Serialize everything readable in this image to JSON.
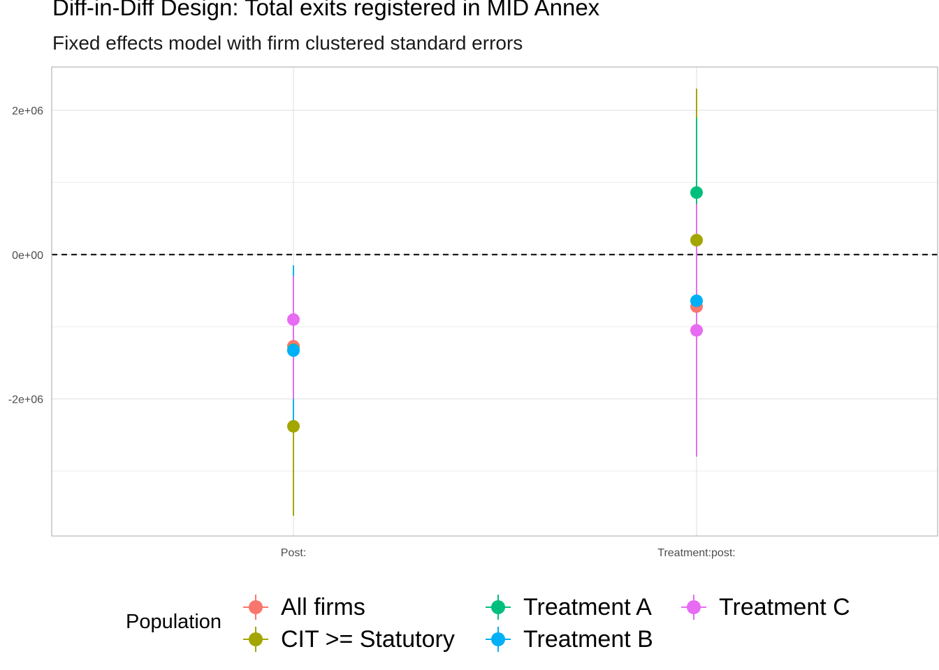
{
  "chart_data": {
    "type": "scatter",
    "subtype": "coefficient-plot-with-error-bars",
    "title": "Diff-in-Diff Design: Total exits registered in MID Annex",
    "subtitle": "Fixed effects model with firm clustered standard errors",
    "xlabel": "",
    "ylabel": "",
    "categories": [
      "Post:",
      "Treatment:post:"
    ],
    "ylim": [
      -3900000,
      2600000
    ],
    "y_ticks": [
      2000000,
      0,
      -2000000
    ],
    "y_tick_labels": [
      "2e+06",
      "0e+00",
      "-2e+06"
    ],
    "y_minor_gridlines": [
      1000000,
      -1000000,
      -3000000
    ],
    "reference_line": {
      "y": 0,
      "style": "dashed"
    },
    "legend_title": "Population",
    "legend_position": "bottom",
    "series": [
      {
        "name": "All firms",
        "color": "#F8766D",
        "estimates": [
          -1270000,
          -720000
        ],
        "lower": [
          -2400000,
          -1900000
        ],
        "upper": [
          -300000,
          450000
        ]
      },
      {
        "name": "CIT >= Statutory",
        "color": "#A3A500",
        "estimates": [
          -2380000,
          200000
        ],
        "lower": [
          -3620000,
          -1900000
        ],
        "upper": [
          -1250000,
          2300000
        ]
      },
      {
        "name": "Treatment A",
        "color": "#00BF7D",
        "estimates": [
          -1320000,
          860000
        ],
        "lower": [
          -2400000,
          -250000
        ],
        "upper": [
          -300000,
          1900000
        ]
      },
      {
        "name": "Treatment B",
        "color": "#00B0F6",
        "estimates": [
          -1330000,
          -640000
        ],
        "lower": [
          -2400000,
          -1800000
        ],
        "upper": [
          -150000,
          500000
        ]
      },
      {
        "name": "Treatment C",
        "color": "#E76BF3",
        "estimates": [
          -900000,
          -1050000
        ],
        "lower": [
          -2000000,
          -2800000
        ],
        "upper": [
          -300000,
          700000
        ]
      }
    ]
  }
}
